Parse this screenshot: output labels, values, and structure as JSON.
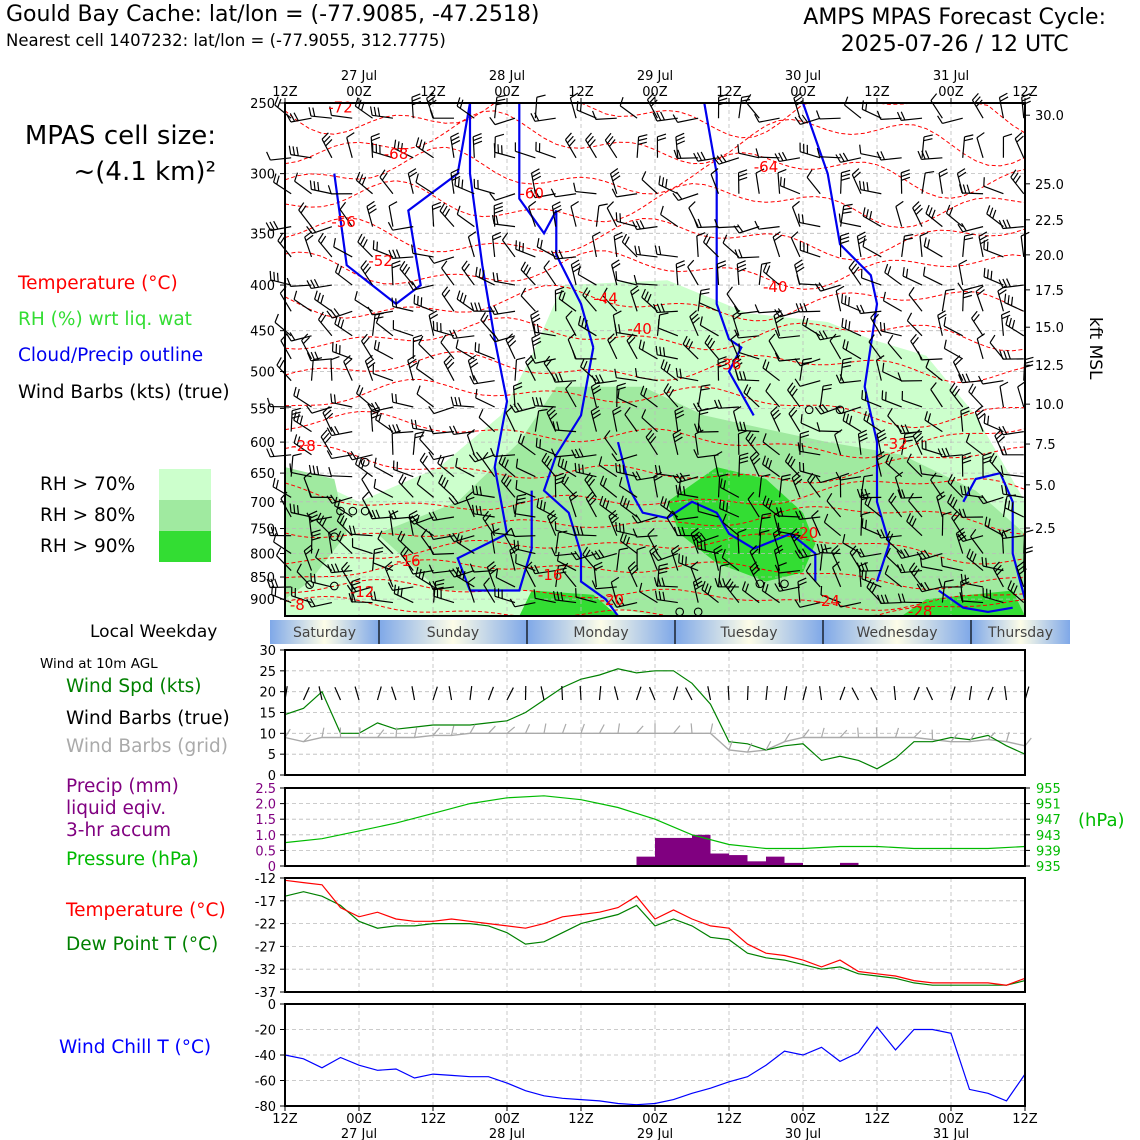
{
  "header": {
    "location_line": "Gould Bay Cache: lat/lon = (-77.9085, -47.2518)",
    "cell_line": "Nearest cell 1407232: lat/lon = (-77.9055, 312.7775)",
    "cycle_line1": "AMPS MPAS Forecast Cycle:",
    "cycle_line2": "2025-07-26 / 12 UTC"
  },
  "cell_size": {
    "line1": "MPAS cell size:",
    "line2": "~(4.1 km)²"
  },
  "legend": {
    "temperature": "Temperature (°C)",
    "rh": "RH (%) wrt liq. wat",
    "cloud": "Cloud/Precip outline",
    "wind": "Wind Barbs (kts) (true)",
    "rh70": "RH > 70%",
    "rh80": "RH > 80%",
    "rh90": "RH > 90%"
  },
  "colors": {
    "temperature": "#ff0000",
    "rh_label": "#33cc33",
    "cloud": "#0000ee",
    "rh70": "#ccffcc",
    "rh80": "#a0eaa0",
    "rh90": "#33dd33",
    "wind_speed": "#008000",
    "precip": "#800080",
    "pressure": "#00bb00",
    "wind_chill": "#0000ff",
    "grid_barbs": "#aaaaaa"
  },
  "time_axis": {
    "top_ticks": [
      "12Z",
      "00Z",
      "12Z",
      "00Z",
      "12Z",
      "00Z",
      "12Z",
      "00Z",
      "12Z",
      "00Z",
      "12Z"
    ],
    "top_dates": [
      "27 Jul",
      "28 Jul",
      "29 Jul",
      "30 Jul",
      "31 Jul"
    ],
    "bottom_ticks": [
      "12Z",
      "00Z",
      "12Z",
      "00Z",
      "12Z",
      "00Z",
      "12Z",
      "00Z",
      "12Z",
      "00Z",
      "12Z"
    ],
    "bottom_dates": [
      "27 Jul",
      "28 Jul",
      "29 Jul",
      "30 Jul",
      "31 Jul"
    ]
  },
  "weekday": {
    "label": "Local Weekday",
    "days": [
      "Saturday",
      "Sunday",
      "Monday",
      "Tuesday",
      "Wednesday",
      "Thursday"
    ]
  },
  "sfc_labels": {
    "title": "Wind at 10m AGL",
    "wind_spd": "Wind Spd (kts)",
    "barbs_true": "Wind Barbs (true)",
    "barbs_grid": "Wind Barbs (grid)",
    "precip1": "Precip (mm)",
    "precip2": "liquid eqiv.",
    "precip3": "3-hr accum",
    "pressure": "Pressure (hPa)",
    "temperature": "Temperature (°C)",
    "dewpoint": "Dew Point T (°C)",
    "windchill": "Wind Chill T (°C)",
    "hpa_unit": "(hPa)",
    "kft": "kft MSL"
  },
  "chart_data": [
    {
      "type": "heatmap",
      "description_of_panel": "Time-height cross section",
      "x_hours": [
        0,
        120
      ],
      "y_pressure_levels": [
        250,
        300,
        350,
        400,
        450,
        500,
        550,
        600,
        650,
        700,
        750,
        800,
        850,
        900
      ],
      "y_labels": [
        "250",
        "300",
        "350",
        "400",
        "450",
        "500",
        "550",
        "600",
        "650",
        "700",
        "750",
        "800",
        "850",
        "900"
      ],
      "ylim_hpa": [
        940,
        250
      ],
      "right_axis_kft": [
        "30.0",
        "25.0",
        "22.5",
        "20.0",
        "17.5",
        "15.0",
        "12.5",
        "10.0",
        "7.5",
        "5.0",
        "2.5"
      ],
      "right_axis_hpa": [
        258,
        308,
        338,
        370,
        405,
        446,
        492,
        544,
        603,
        670,
        749,
        857
      ],
      "temperature_contour_labels": [
        {
          "text": "-72",
          "t": 9,
          "p": 253
        },
        {
          "text": "-68",
          "t": 18,
          "p": 285
        },
        {
          "text": "-60",
          "t": 40,
          "p": 316
        },
        {
          "text": "-64",
          "t": 78,
          "p": 295
        },
        {
          "text": "-56",
          "t": 9.5,
          "p": 340
        },
        {
          "text": "-52",
          "t": 15.5,
          "p": 376
        },
        {
          "text": "-44",
          "t": 52,
          "p": 414
        },
        {
          "text": "-40",
          "t": 57.5,
          "p": 448
        },
        {
          "text": "-40",
          "t": 79.5,
          "p": 402
        },
        {
          "text": "-36",
          "t": 72,
          "p": 491
        },
        {
          "text": "-32",
          "t": 99,
          "p": 603
        },
        {
          "text": "-28",
          "t": 3,
          "p": 606
        },
        {
          "text": "-20",
          "t": 84.5,
          "p": 759
        },
        {
          "text": "-16",
          "t": 20,
          "p": 816
        },
        {
          "text": "-16",
          "t": 43,
          "p": 846
        },
        {
          "text": "-12",
          "t": 12.5,
          "p": 883
        },
        {
          "text": "-20",
          "t": 53,
          "p": 902
        },
        {
          "text": "-24",
          "t": 88,
          "p": 904
        },
        {
          "text": "-28",
          "t": 103,
          "p": 929
        },
        {
          "text": "-8",
          "t": 2,
          "p": 914
        }
      ],
      "rh_percent_classes": [
        70,
        80,
        90
      ],
      "cloud_outline": "Cloud/Precip outline"
    },
    {
      "type": "line",
      "panel": "Wind at 10m AGL",
      "x_hours": [
        0,
        3,
        6,
        9,
        12,
        15,
        18,
        21,
        24,
        27,
        30,
        33,
        36,
        39,
        42,
        45,
        48,
        51,
        54,
        57,
        60,
        63,
        66,
        69,
        72,
        75,
        78,
        81,
        84,
        87,
        90,
        93,
        96,
        99,
        102,
        105,
        108,
        111,
        114,
        117,
        120
      ],
      "series": [
        {
          "name": "Wind Spd (kts)",
          "values": [
            14.5,
            16,
            20,
            10,
            10,
            12.5,
            11,
            11.5,
            12,
            12,
            12,
            12.5,
            13,
            15,
            18,
            21,
            23,
            24,
            25.5,
            24.5,
            25,
            25,
            22,
            17,
            8,
            7.5,
            6,
            7,
            7.5,
            3.5,
            4.5,
            3.5,
            1.5,
            4,
            8,
            8,
            9,
            8.5,
            9.5,
            7,
            5
          ]
        },
        {
          "name": "Wind Barbs (grid)",
          "values": [
            9,
            8,
            9,
            9,
            9,
            9,
            9,
            9,
            9.5,
            9.5,
            10,
            10,
            10,
            10,
            10,
            10,
            10,
            10,
            10,
            10,
            10,
            10,
            10,
            10,
            6,
            5.5,
            6,
            8,
            9,
            9,
            9,
            9,
            9,
            9,
            9,
            8.5,
            8,
            8,
            8.5,
            8,
            7
          ]
        }
      ],
      "ylim": [
        0,
        30
      ],
      "yticks": [
        "0",
        "5",
        "10",
        "15",
        "20",
        "25",
        "30"
      ]
    },
    {
      "type": "bar",
      "panel": "Precip / Pressure",
      "precip_bars": [
        {
          "t_start": 57,
          "t_end": 60,
          "mm": 0.3
        },
        {
          "t_start": 60,
          "t_end": 63,
          "mm": 0.9
        },
        {
          "t_start": 63,
          "t_end": 66,
          "mm": 0.9
        },
        {
          "t_start": 66,
          "t_end": 69,
          "mm": 1.0
        },
        {
          "t_start": 69,
          "t_end": 72,
          "mm": 0.4
        },
        {
          "t_start": 72,
          "t_end": 75,
          "mm": 0.35
        },
        {
          "t_start": 75,
          "t_end": 78,
          "mm": 0.15
        },
        {
          "t_start": 78,
          "t_end": 81,
          "mm": 0.3
        },
        {
          "t_start": 81,
          "t_end": 84,
          "mm": 0.1
        },
        {
          "t_start": 90,
          "t_end": 93,
          "mm": 0.1
        }
      ],
      "precip_ylim": [
        0,
        2.5
      ],
      "precip_yticks": [
        "0",
        "0.5",
        "1.0",
        "1.5",
        "2.0",
        "2.5"
      ],
      "pressure_x_hours": [
        0,
        6,
        12,
        18,
        24,
        30,
        36,
        42,
        48,
        54,
        60,
        66,
        72,
        78,
        84,
        90,
        96,
        102,
        108,
        114,
        120
      ],
      "pressure_hpa": [
        941,
        942,
        944,
        946,
        948.5,
        951,
        952.5,
        953,
        952,
        950,
        947,
        943,
        940.5,
        939.5,
        939.5,
        940,
        940,
        939.5,
        939.5,
        939.5,
        940
      ],
      "pressure_ylim": [
        935,
        955
      ],
      "pressure_yticks": [
        "935",
        "939",
        "943",
        "947",
        "951",
        "955"
      ]
    },
    {
      "type": "line",
      "panel": "Temperature / Dew Point",
      "x_hours": [
        0,
        3,
        6,
        9,
        12,
        15,
        18,
        21,
        24,
        27,
        30,
        33,
        36,
        39,
        42,
        45,
        48,
        51,
        54,
        57,
        60,
        63,
        66,
        69,
        72,
        75,
        78,
        81,
        84,
        87,
        90,
        93,
        96,
        99,
        102,
        105,
        108,
        111,
        114,
        117,
        120
      ],
      "series": [
        {
          "name": "Temperature (°C)",
          "values": [
            -12.5,
            -13,
            -13.5,
            -18.5,
            -20.5,
            -19.5,
            -21,
            -21.5,
            -21.5,
            -21,
            -21.5,
            -22,
            -22.5,
            -23,
            -22,
            -20.5,
            -20,
            -19.5,
            -18.5,
            -16,
            -21,
            -19,
            -21,
            -22.5,
            -23,
            -26.5,
            -28.5,
            -29,
            -30,
            -31.5,
            -30,
            -32.5,
            -33,
            -33.5,
            -34.5,
            -35,
            -35,
            -35,
            -35,
            -35.5,
            -34
          ]
        },
        {
          "name": "Dew Point T (°C)",
          "values": [
            -16,
            -15,
            -16,
            -18,
            -21.5,
            -23,
            -22.5,
            -22.5,
            -22,
            -22,
            -22,
            -22.5,
            -24,
            -26.5,
            -26,
            -24,
            -22,
            -21,
            -20,
            -18,
            -22.5,
            -21,
            -22.5,
            -25,
            -25.5,
            -28.5,
            -29.5,
            -30,
            -31,
            -32,
            -31.5,
            -33,
            -33.5,
            -34,
            -35,
            -35.5,
            -35.5,
            -35.5,
            -35.5,
            -35.5,
            -34.5
          ]
        }
      ],
      "ylim": [
        -37,
        -12
      ],
      "yticks": [
        "-12",
        "-17",
        "-22",
        "-27",
        "-32",
        "-37"
      ]
    },
    {
      "type": "line",
      "panel": "Wind Chill",
      "x_hours": [
        0,
        3,
        6,
        9,
        12,
        15,
        18,
        21,
        24,
        27,
        30,
        33,
        36,
        39,
        42,
        45,
        48,
        51,
        54,
        57,
        60,
        63,
        66,
        69,
        72,
        75,
        78,
        81,
        84,
        87,
        90,
        93,
        96,
        99,
        102,
        105,
        108,
        111,
        114,
        117,
        120
      ],
      "series": [
        {
          "name": "Wind Chill T (°C)",
          "values": [
            -40,
            -43,
            -50,
            -42,
            -48,
            -52,
            -51,
            -58,
            -55,
            -56,
            -57,
            -57,
            -62,
            -68,
            -72,
            -74,
            -75,
            -76,
            -78,
            -79,
            -78,
            -75,
            -70,
            -66,
            -61,
            -57,
            -48,
            -37,
            -40,
            -34,
            -45,
            -38,
            -18,
            -36,
            -20,
            -20,
            -23,
            -67,
            -70,
            -76,
            -55
          ]
        }
      ],
      "ylim": [
        -80,
        0
      ],
      "yticks": [
        "0",
        "-20",
        "-40",
        "-60",
        "-80"
      ]
    }
  ]
}
